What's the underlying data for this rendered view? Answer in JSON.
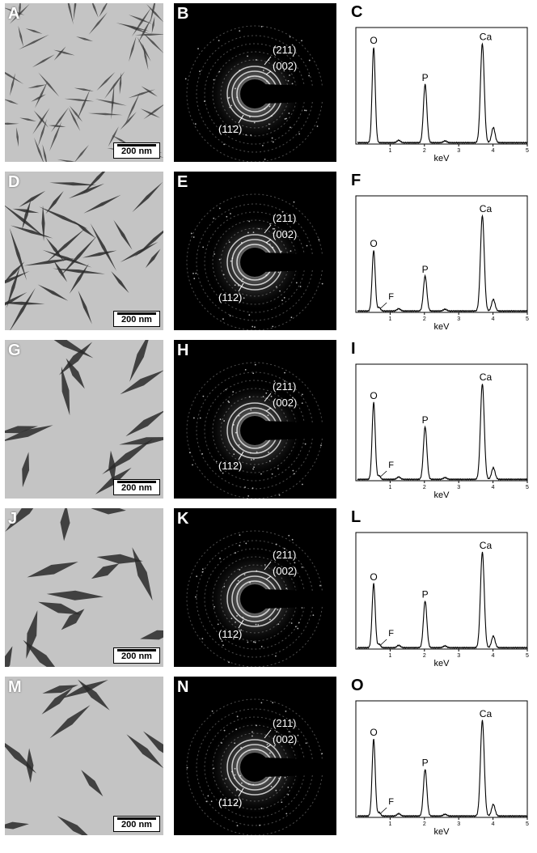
{
  "rows": [
    {
      "tem": {
        "label": "A",
        "scale": "200 nm",
        "texture": "dense"
      },
      "saed": {
        "label": "B",
        "ring211": "(211)",
        "ring002": "(002)",
        "ring112": "(112)"
      },
      "eds": {
        "label": "C",
        "peak_O": "O",
        "peak_P": "P",
        "peak_Ca": "Ca",
        "peak_F": "",
        "xlabel": "keV",
        "ticks": [
          "1",
          "2",
          "3",
          "4",
          "5"
        ],
        "heights": {
          "O": 0.82,
          "P": 0.5,
          "Ca": 0.85,
          "CaKb": 0.13,
          "F": 0.0
        }
      }
    },
    {
      "tem": {
        "label": "D",
        "scale": "200 nm",
        "texture": "needles"
      },
      "saed": {
        "label": "E",
        "ring211": "(211)",
        "ring002": "(002)",
        "ring112": "(112)"
      },
      "eds": {
        "label": "F",
        "peak_O": "O",
        "peak_P": "P",
        "peak_Ca": "Ca",
        "peak_F": "F",
        "xlabel": "keV",
        "ticks": [
          "1",
          "2",
          "3",
          "4",
          "5"
        ],
        "heights": {
          "O": 0.52,
          "P": 0.3,
          "Ca": 0.82,
          "CaKb": 0.1,
          "F": 0.03
        }
      }
    },
    {
      "tem": {
        "label": "G",
        "scale": "200 nm",
        "texture": "rods"
      },
      "saed": {
        "label": "H",
        "ring211": "(211)",
        "ring002": "(002)",
        "ring112": "(112)"
      },
      "eds": {
        "label": "I",
        "peak_O": "O",
        "peak_P": "P",
        "peak_Ca": "Ca",
        "peak_F": "F",
        "xlabel": "keV",
        "ticks": [
          "1",
          "2",
          "3",
          "4",
          "5"
        ],
        "heights": {
          "O": 0.66,
          "P": 0.45,
          "Ca": 0.82,
          "CaKb": 0.1,
          "F": 0.03
        }
      }
    },
    {
      "tem": {
        "label": "J",
        "scale": "200 nm",
        "texture": "thick"
      },
      "saed": {
        "label": "K",
        "ring211": "(211)",
        "ring002": "(002)",
        "ring112": "(112)"
      },
      "eds": {
        "label": "L",
        "peak_O": "O",
        "peak_P": "P",
        "peak_Ca": "Ca",
        "peak_F": "F",
        "xlabel": "keV",
        "ticks": [
          "1",
          "2",
          "3",
          "4",
          "5"
        ],
        "heights": {
          "O": 0.55,
          "P": 0.4,
          "Ca": 0.82,
          "CaKb": 0.1,
          "F": 0.03
        }
      }
    },
    {
      "tem": {
        "label": "M",
        "scale": "200 nm",
        "texture": "spindles"
      },
      "saed": {
        "label": "N",
        "ring211": "(211)",
        "ring002": "(002)",
        "ring112": "(112)"
      },
      "eds": {
        "label": "O",
        "peak_O": "O",
        "peak_P": "P",
        "peak_Ca": "Ca",
        "peak_F": "F",
        "xlabel": "keV",
        "ticks": [
          "1",
          "2",
          "3",
          "4",
          "5"
        ],
        "heights": {
          "O": 0.66,
          "P": 0.4,
          "Ca": 0.82,
          "CaKb": 0.1,
          "F": 0.03
        }
      }
    }
  ]
}
